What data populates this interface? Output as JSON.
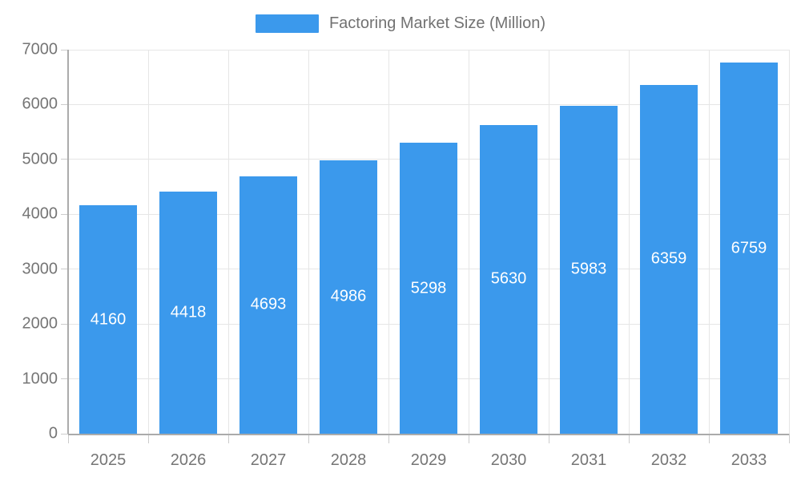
{
  "chart_data": {
    "type": "bar",
    "title": "",
    "legend": "Factoring Market Size (Million)",
    "categories": [
      "2025",
      "2026",
      "2027",
      "2028",
      "2029",
      "2030",
      "2031",
      "2032",
      "2033"
    ],
    "values": [
      4160,
      4418,
      4693,
      4986,
      5298,
      5630,
      5983,
      6359,
      6759
    ],
    "xlabel": "",
    "ylabel": "",
    "ylim": [
      0,
      7000
    ],
    "ytick_step": 1000,
    "grid": "both",
    "legend_position": "top-center",
    "value_labels": "centered-inside-bars",
    "colors": {
      "bar": "#3b99ec",
      "bar_value_text": "#ffffff",
      "axis_text": "#757575",
      "legend_text": "#727272",
      "gridline": "#e6e6e6",
      "axis_line": "#ababab",
      "tick": "#cccccc",
      "background": "#ffffff"
    }
  }
}
